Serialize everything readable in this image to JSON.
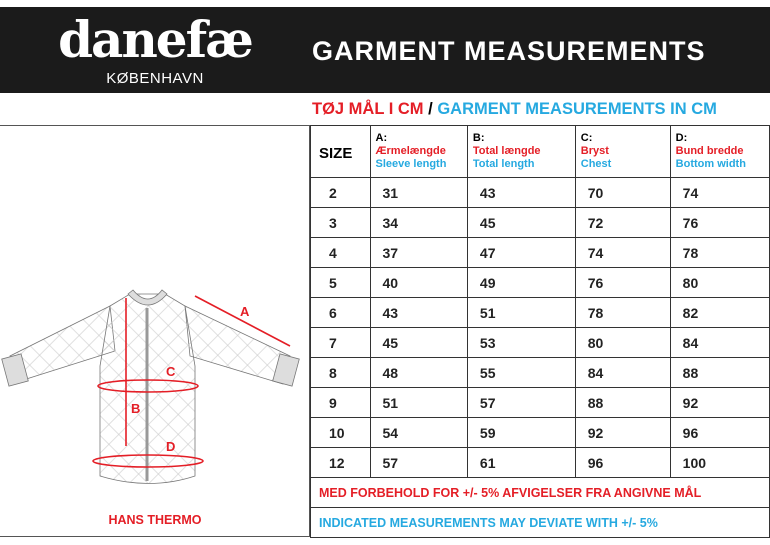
{
  "brand": {
    "wordmark": "danefæ",
    "city": "KØBENHAVN"
  },
  "title": "GARMENT MEASUREMENTS",
  "subtitle": {
    "danish": "TØJ MÅL I CM",
    "sep": "/",
    "english": "GARMENT MEASUREMENTS IN CM"
  },
  "product": "HANS THERMO",
  "diagram_labels": {
    "a": "A",
    "b": "B",
    "c": "C",
    "d": "D"
  },
  "table": {
    "size_header": "SIZE",
    "columns": [
      {
        "key": "A:",
        "danish": "Ærmelængde",
        "english": "Sleeve length"
      },
      {
        "key": "B:",
        "danish": "Total længde",
        "english": "Total length"
      },
      {
        "key": "C:",
        "danish": "Bryst",
        "english": "Chest"
      },
      {
        "key": "D:",
        "danish": "Bund bredde",
        "english": "Bottom width"
      }
    ],
    "rows": [
      [
        "2",
        "31",
        "43",
        "70",
        "74"
      ],
      [
        "3",
        "34",
        "45",
        "72",
        "76"
      ],
      [
        "4",
        "37",
        "47",
        "74",
        "78"
      ],
      [
        "5",
        "40",
        "49",
        "76",
        "80"
      ],
      [
        "6",
        "43",
        "51",
        "78",
        "82"
      ],
      [
        "7",
        "45",
        "53",
        "80",
        "84"
      ],
      [
        "8",
        "48",
        "55",
        "84",
        "88"
      ],
      [
        "9",
        "51",
        "57",
        "88",
        "92"
      ],
      [
        "10",
        "54",
        "59",
        "92",
        "96"
      ],
      [
        "12",
        "57",
        "61",
        "96",
        "100"
      ]
    ],
    "note_danish": "MED FORBEHOLD FOR +/- 5% AFVIGELSER FRA ANGIVNE MÅL",
    "note_english": "INDICATED MEASUREMENTS MAY DEVIATE WITH +/- 5%"
  },
  "colors": {
    "red": "#e41e26",
    "blue": "#26a9e0",
    "band": "#1b1b1b"
  }
}
